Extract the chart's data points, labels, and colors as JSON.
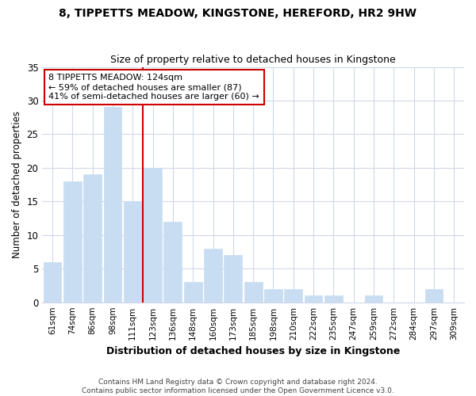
{
  "title": "8, TIPPETTS MEADOW, KINGSTONE, HEREFORD, HR2 9HW",
  "subtitle": "Size of property relative to detached houses in Kingstone",
  "xlabel": "Distribution of detached houses by size in Kingstone",
  "ylabel": "Number of detached properties",
  "bar_labels": [
    "61sqm",
    "74sqm",
    "86sqm",
    "98sqm",
    "111sqm",
    "123sqm",
    "136sqm",
    "148sqm",
    "160sqm",
    "173sqm",
    "185sqm",
    "198sqm",
    "210sqm",
    "222sqm",
    "235sqm",
    "247sqm",
    "259sqm",
    "272sqm",
    "284sqm",
    "297sqm",
    "309sqm"
  ],
  "bar_values": [
    6,
    18,
    19,
    29,
    15,
    20,
    12,
    3,
    8,
    7,
    3,
    2,
    2,
    1,
    1,
    0,
    1,
    0,
    0,
    2,
    0
  ],
  "bar_color": "#c9ddf2",
  "bar_edgecolor": "#c9ddf2",
  "vline_color": "#cc0000",
  "ylim": [
    0,
    35
  ],
  "yticks": [
    0,
    5,
    10,
    15,
    20,
    25,
    30,
    35
  ],
  "annotation_title": "8 TIPPETTS MEADOW: 124sqm",
  "annotation_line1": "← 59% of detached houses are smaller (87)",
  "annotation_line2": "41% of semi-detached houses are larger (60) →",
  "annotation_box_facecolor": "#ffffff",
  "annotation_box_edgecolor": "#cc0000",
  "footer1": "Contains HM Land Registry data © Crown copyright and database right 2024.",
  "footer2": "Contains public sector information licensed under the Open Government Licence v3.0.",
  "background_color": "#ffffff",
  "plot_background": "#ffffff",
  "grid_color": "#d0d8e8",
  "title_fontsize": 10,
  "subtitle_fontsize": 9
}
